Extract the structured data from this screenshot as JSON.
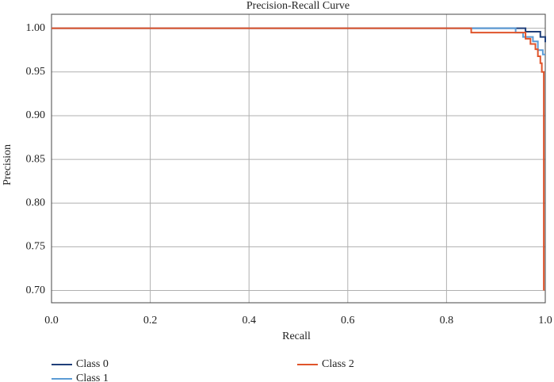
{
  "chart_data": {
    "type": "line",
    "title": "Precision-Recall Curve",
    "x_label": "Recall",
    "y_label": "Precision",
    "xlim": [
      0,
      1
    ],
    "ylim": [
      0.686,
      1.016
    ],
    "xticks": [
      {
        "value": 0,
        "label": "0.0"
      },
      0.2,
      0.4,
      0.6,
      0.8,
      {
        "value": 1,
        "label": "1.0"
      }
    ],
    "yticks": [
      {
        "value": 0.7,
        "label": "0.70"
      },
      0.75,
      {
        "value": 0.8,
        "label": "0.80"
      },
      0.85,
      {
        "value": 0.9,
        "label": "0.90"
      },
      0.95,
      {
        "value": 1,
        "label": "1.00"
      }
    ],
    "grid": true,
    "series": [
      {
        "name": "Class 0",
        "color": "#1f3f7a",
        "x": [
          0,
          0.96,
          0.96,
          0.99,
          0.99,
          1,
          1
        ],
        "values": [
          1,
          1,
          0.996,
          0.996,
          0.99,
          0.99,
          0.984
        ]
      },
      {
        "name": "Class 1",
        "color": "#5b9bd5",
        "x": [
          0,
          0.94,
          0.94,
          0.955,
          0.955,
          0.975,
          0.975,
          0.985,
          0.985,
          0.995,
          0.995,
          1
        ],
        "values": [
          1,
          1,
          0.995,
          0.995,
          0.99,
          0.99,
          0.985,
          0.985,
          0.975,
          0.975,
          0.97,
          0.97
        ]
      },
      {
        "name": "Class 2",
        "color": "#e0542a",
        "x": [
          0,
          0.85,
          0.85,
          0.96,
          0.96,
          0.97,
          0.97,
          0.98,
          0.98,
          0.985,
          0.985,
          0.99,
          0.99,
          0.993,
          0.993,
          0.997,
          0.997
        ],
        "values": [
          1,
          1,
          0.995,
          0.995,
          0.988,
          0.988,
          0.982,
          0.982,
          0.976,
          0.976,
          0.968,
          0.968,
          0.96,
          0.96,
          0.95,
          0.95,
          0.7
        ]
      }
    ]
  }
}
